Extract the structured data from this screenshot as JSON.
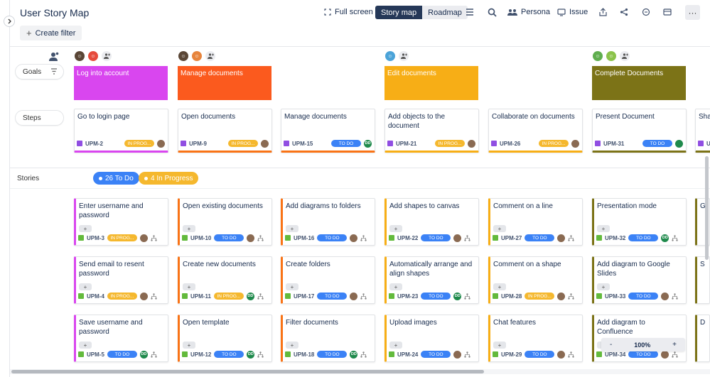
{
  "header": {
    "title": "User Story Map",
    "create_filter": "Create filter",
    "full_screen": "Full screen",
    "views": [
      "Story map",
      "Roadmap"
    ],
    "persona": "Persona",
    "issue": "Issue"
  },
  "rows": {
    "goals": "Goals",
    "steps": "Steps",
    "stories": "Stories"
  },
  "stories_summary": {
    "todo": "26 To Do",
    "in_progress": "4 In Progress"
  },
  "goals": [
    {
      "label": "Log into account",
      "color": "#d946ef"
    },
    {
      "label": "Manage documents",
      "color": "#f97316"
    },
    {
      "label": "Edit documents",
      "color": "#f7ae16"
    },
    {
      "label": "Complete Documents",
      "color": "#7c7317"
    }
  ],
  "steps": [
    {
      "title": "Go to login page",
      "key": "UPM-2",
      "status": "IN PROG...",
      "color": "#d946ef"
    },
    {
      "title": "Open documents",
      "key": "UPM-9",
      "status": "IN PROG...",
      "color": "#f97316"
    },
    {
      "title": "Manage documents",
      "key": "UPM-15",
      "status": "TO DO",
      "color": "#f97316"
    },
    {
      "title": "Add objects to the document",
      "key": "UPM-21",
      "status": "IN PROG...",
      "color": "#f7ae16"
    },
    {
      "title": "Collaborate on documents",
      "key": "UPM-26",
      "status": "IN PROG...",
      "color": "#f7ae16"
    },
    {
      "title": "Present Document",
      "key": "UPM-31",
      "status": "TO DO",
      "color": "#7c7317"
    },
    {
      "title": "Shar",
      "key": "UPM",
      "status": "",
      "color": "#7c7317"
    }
  ],
  "stories": [
    [
      {
        "title": "Enter username and password",
        "key": "UPM-3",
        "status": "IN PROG...",
        "color": "#d946ef"
      },
      {
        "title": "Send email to resent password",
        "key": "UPM-4",
        "status": "IN PROG...",
        "color": "#d946ef"
      },
      {
        "title": "Save username and password",
        "key": "UPM-5",
        "status": "TO DO",
        "color": "#d946ef"
      }
    ],
    [
      {
        "title": "Open existing documents",
        "key": "UPM-10",
        "status": "TO DO",
        "color": "#f97316"
      },
      {
        "title": "Create new documents",
        "key": "UPM-11",
        "status": "IN PROG...",
        "color": "#f97316"
      },
      {
        "title": "Open template",
        "key": "UPM-12",
        "status": "TO DO",
        "color": "#f97316"
      }
    ],
    [
      {
        "title": "Add diagrams to folders",
        "key": "UPM-16",
        "status": "TO DO",
        "color": "#f97316"
      },
      {
        "title": "Create folders",
        "key": "UPM-17",
        "status": "TO DO",
        "color": "#f97316"
      },
      {
        "title": "Filter documents",
        "key": "UPM-18",
        "status": "TO DO",
        "color": "#f97316"
      }
    ],
    [
      {
        "title": "Add shapes to canvas",
        "key": "UPM-22",
        "status": "TO DO",
        "color": "#f7ae16"
      },
      {
        "title": "Automatically arrange and align shapes",
        "key": "UPM-23",
        "status": "TO DO",
        "color": "#f7ae16"
      },
      {
        "title": "Upload images",
        "key": "UPM-24",
        "status": "TO DO",
        "color": "#f7ae16"
      }
    ],
    [
      {
        "title": "Comment on a line",
        "key": "UPM-27",
        "status": "TO DO",
        "color": "#f7ae16"
      },
      {
        "title": "Comment on a shape",
        "key": "UPM-28",
        "status": "IN PROG...",
        "color": "#f7ae16"
      },
      {
        "title": "Chat features",
        "key": "UPM-29",
        "status": "TO DO",
        "color": "#f7ae16"
      }
    ],
    [
      {
        "title": "Presentation mode",
        "key": "UPM-32",
        "status": "TO DO",
        "color": "#7c7317"
      },
      {
        "title": "Add diagram to Google Slides",
        "key": "UPM-33",
        "status": "TO DO",
        "color": "#7c7317"
      },
      {
        "title": "Add diagram to Confluence",
        "key": "UPM-34",
        "status": "TO DO",
        "color": "#7c7317"
      }
    ],
    [
      {
        "title": "G",
        "key": "",
        "status": "",
        "color": "#7c7317"
      },
      {
        "title": "S",
        "key": "",
        "status": "",
        "color": "#7c7317"
      },
      {
        "title": "D",
        "key": "",
        "status": "",
        "color": "#7c7317"
      }
    ]
  ],
  "story_plus": "+",
  "zoom": {
    "minus": "-",
    "value": "100%",
    "plus": "+"
  },
  "avatars": {
    "dd_initials": "DD"
  }
}
